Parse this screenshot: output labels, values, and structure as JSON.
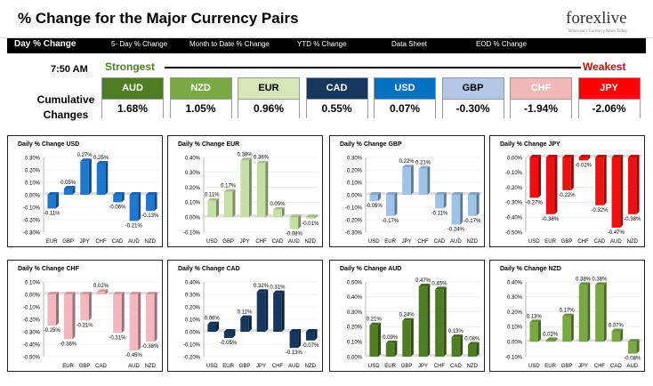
{
  "header": {
    "title": "% Change for the Major Currency Pairs",
    "logo_text": "forexlive",
    "logo_tagline": "Tomorrow's Currency News Today"
  },
  "nav": {
    "items": [
      {
        "label": "Day % Change",
        "active": true
      },
      {
        "label": "5- Day % Change",
        "active": false
      },
      {
        "label": "Month to Date % Change",
        "active": false
      },
      {
        "label": "YTD % Change",
        "active": false
      },
      {
        "label": "Data Sheet",
        "active": false
      },
      {
        "label": "EOD % Change",
        "active": false
      }
    ]
  },
  "summary": {
    "time": "7:50 AM",
    "cumulative_label": "Cumulative Changes",
    "strongest_label": "Strongest",
    "weakest_label": "Weakest",
    "rankings": [
      {
        "currency": "AUD",
        "value": "1.68%",
        "bg": "#4f7d23",
        "fg": "#ffffff"
      },
      {
        "currency": "NZD",
        "value": "1.05%",
        "bg": "#79a845",
        "fg": "#ffffff"
      },
      {
        "currency": "EUR",
        "value": "0.96%",
        "bg": "#d6e6b8",
        "fg": "#000000"
      },
      {
        "currency": "CAD",
        "value": "0.55%",
        "bg": "#17375e",
        "fg": "#ffffff"
      },
      {
        "currency": "USD",
        "value": "0.07%",
        "bg": "#0070c0",
        "fg": "#ffffff"
      },
      {
        "currency": "GBP",
        "value": "-0.30%",
        "bg": "#b4c7e7",
        "fg": "#000000"
      },
      {
        "currency": "CHF",
        "value": "-1.94%",
        "bg": "#f2b8b8",
        "fg": "#ffffff"
      },
      {
        "currency": "JPY",
        "value": "-2.06%",
        "bg": "#ff0000",
        "fg": "#ffffff"
      }
    ]
  },
  "chart_data": [
    {
      "type": "bar",
      "title": "Daily % Change USD",
      "color": "#1f77d0",
      "categories": [
        "EUR",
        "GBP",
        "JPY",
        "CHF",
        "CAD",
        "AUD",
        "NZD"
      ],
      "values": [
        -0.11,
        0.05,
        0.27,
        0.25,
        -0.06,
        -0.21,
        -0.13
      ],
      "labels": [
        "-0.11%",
        "0.05%",
        "0.27%",
        "0.25%",
        "-0.06%",
        "-0.21%",
        "-0.13%"
      ],
      "ylim": [
        -0.3,
        0.3
      ],
      "ticks": [
        "0.30%",
        "0.20%",
        "0.10%",
        "0.00%",
        "-0.10%",
        "-0.20%",
        "-0.30%"
      ]
    },
    {
      "type": "bar",
      "title": "Daily % Change EUR",
      "color": "#c6e0a4",
      "categories": [
        "USD",
        "GBP",
        "JPY",
        "CHF",
        "CAD",
        "AUD",
        "NZD"
      ],
      "values": [
        0.11,
        0.17,
        0.38,
        0.36,
        0.05,
        -0.08,
        -0.01
      ],
      "labels": [
        "0.11%",
        "0.17%",
        "0.38%",
        "0.36%",
        "0.05%",
        "-0.08%",
        "-0.01%"
      ],
      "ylim": [
        -0.1,
        0.4
      ],
      "ticks": [
        "0.40%",
        "0.30%",
        "0.20%",
        "0.10%",
        "0.00%",
        "-0.10%"
      ]
    },
    {
      "type": "bar",
      "title": "Daily % Change GBP",
      "color": "#9dc3e6",
      "categories": [
        "USD",
        "EUR",
        "JPY",
        "CHF",
        "CAD",
        "AUD",
        "NZD"
      ],
      "values": [
        -0.05,
        -0.17,
        0.22,
        0.21,
        -0.11,
        -0.24,
        -0.17
      ],
      "labels": [
        "-0.05%",
        "-0.17%",
        "0.22%",
        "0.21%",
        "-0.11%",
        "-0.24%",
        "-0.17%"
      ],
      "ylim": [
        -0.3,
        0.3
      ],
      "ticks": [
        "0.30%",
        "0.20%",
        "0.10%",
        "0.00%",
        "-0.10%",
        "-0.20%",
        "-0.30%"
      ]
    },
    {
      "type": "bar",
      "title": "Daily % Change JPY",
      "color": "#ee1111",
      "categories": [
        "USD",
        "EUR",
        "GBP",
        "CHF",
        "CAD",
        "AUD",
        "NZD"
      ],
      "values": [
        -0.27,
        -0.38,
        -0.22,
        -0.02,
        -0.32,
        -0.47,
        -0.38
      ],
      "labels": [
        "-0.27%",
        "-0.38%",
        "-0.22%",
        "-0.02%",
        "-0.32%",
        "-0.47%",
        "-0.38%"
      ],
      "ylim": [
        -0.5,
        0.0
      ],
      "ticks": [
        "0.00%",
        "-0.10%",
        "-0.20%",
        "-0.30%",
        "-0.40%",
        "-0.50%"
      ]
    },
    {
      "type": "bar",
      "title": "Daily % Change CHF",
      "color": "#f4b6bf",
      "categories": [
        "EUR",
        "GBP",
        "CAD",
        "AUD",
        "NZD"
      ],
      "values": [
        -0.25,
        -0.36,
        -0.21,
        0.02,
        -0.31,
        -0.45,
        -0.38
      ],
      "labels": [
        "-0.25%",
        "-0.36%",
        "-0.21%",
        "0.02%",
        "-0.31%",
        "-0.45%",
        "-0.38%"
      ],
      "ylim": [
        -0.5,
        0.1
      ],
      "ticks": [
        "0.10%",
        "0.00%",
        "-0.10%",
        "-0.20%",
        "-0.30%",
        "-0.40%",
        "-0.50%"
      ],
      "slots": 7,
      "category_slots": [
        1,
        2,
        3,
        5,
        6
      ]
    },
    {
      "type": "bar",
      "title": "Daily % Change CAD",
      "color": "#17375e",
      "categories": [
        "USD",
        "EUR",
        "GBP",
        "JPY",
        "CHF",
        "AUD",
        "NZD"
      ],
      "values": [
        0.06,
        -0.05,
        0.11,
        0.32,
        0.31,
        -0.13,
        -0.07
      ],
      "labels": [
        "0.06%",
        "-0.05%",
        "0.11%",
        "0.32%",
        "0.31%",
        "-0.13%",
        "-0.07%"
      ],
      "ylim": [
        -0.2,
        0.4
      ],
      "ticks": [
        "0.40%",
        "0.30%",
        "0.20%",
        "0.10%",
        "0.00%",
        "-0.10%",
        "-0.20%"
      ]
    },
    {
      "type": "bar",
      "title": "Daily % Change AUD",
      "color": "#4f7d23",
      "categories": [
        "USD",
        "EUR",
        "GBP",
        "JPY",
        "CHF",
        "CAD",
        "NZD"
      ],
      "values": [
        0.21,
        0.09,
        0.24,
        0.47,
        0.45,
        0.13,
        0.08
      ],
      "labels": [
        "0.21%",
        "0.09%",
        "0.24%",
        "0.47%",
        "0.45%",
        "0.13%",
        "0.08%"
      ],
      "ylim": [
        0.0,
        0.5
      ],
      "ticks": [
        "0.50%",
        "0.40%",
        "0.30%",
        "0.20%",
        "0.10%",
        "0.00%"
      ]
    },
    {
      "type": "bar",
      "title": "Daily % Change NZD",
      "color": "#79a845",
      "categories": [
        "USD",
        "EUR",
        "GBP",
        "JPY",
        "CHF",
        "CAD",
        "AUD"
      ],
      "values": [
        0.13,
        0.01,
        0.17,
        0.38,
        0.38,
        0.07,
        -0.08
      ],
      "labels": [
        "0.13%",
        "0.01%",
        "0.17%",
        "0.38%",
        "0.38%",
        "0.07%",
        "-0.08%"
      ],
      "ylim": [
        -0.1,
        0.4
      ],
      "ticks": [
        "0.40%",
        "0.30%",
        "0.20%",
        "0.10%",
        "0.00%",
        "-0.10%"
      ]
    }
  ]
}
